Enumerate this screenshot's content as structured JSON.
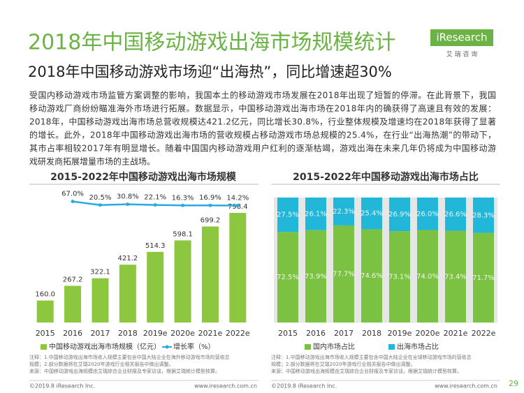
{
  "header": {
    "title": "2018年中国移动游戏出海市场规模统计",
    "logo": "iResearch",
    "logo_sub": "艾 瑞 咨 询",
    "subtitle": "2018年中国移动游戏市场迎“出海热”，同比增速超30%"
  },
  "body": [
    "受国内移动游戏市场监管方案调整的影响，我国本土的移动游戏市场发展在2018年出现了短暂的停滞。在此背景下，我国",
    "移动游戏厂商纷纷瞄准海外市场进行拓展。数据显示，中国移动游戏出海市场在2018年内的确获得了高速且有效的发展：",
    "2018年，中国移动游戏出海市场总营收规模达421.2亿元，同比增长30.8%，行业整体规模及增速均在2018年获得了显著",
    "的增长。此外，2018年中国移动游戏出海市场的营收规模占移动游戏市场总规模的25.4%，在行业“出海热潮”的带动下，",
    "其市占率相较2017年有明显增长。随着中国国内移动游戏用户红利的逐渐枯竭，游戏出海在未来几年仍将成为中国移动游",
    "戏研发商拓展增量市场的主战场。"
  ],
  "chart_data": [
    {
      "type": "bar",
      "title": "2015-2022年中国移动游戏出海市场规模",
      "categories": [
        "2015",
        "2016",
        "2017",
        "2018",
        "2019e",
        "2020e",
        "2021e",
        "2022e"
      ],
      "ylim": [
        0,
        900
      ],
      "y2lim": [
        -1500,
        100
      ],
      "series": [
        {
          "name": "中国移动游戏出海市场规模（亿元）",
          "color": "#8dc63f",
          "values": [
            160.0,
            267.2,
            322.1,
            421.2,
            514.3,
            598.1,
            699.2,
            798.4
          ],
          "value_labels": [
            "160.0",
            "267.2",
            "322.1",
            "421.2",
            "514.3",
            "598.1",
            "699.2",
            "798.4"
          ]
        },
        {
          "name": "增长率（%）",
          "type": "line",
          "axis": "y2",
          "color": "#29abe2",
          "values": [
            null,
            67.0,
            20.5,
            30.8,
            22.1,
            16.3,
            16.9,
            14.2
          ],
          "value_labels": [
            null,
            "67.0%",
            "20.5%",
            "30.8%",
            "22.1%",
            "16.3%",
            "16.9%",
            "14.2%"
          ]
        }
      ],
      "notes": [
        "注释：1.中国移动游戏出海市场收入规模主要包含中国大陆企业在海外移动游戏市场的营收总",
        "规模；2.部分数据将在艾瑞2020年游戏行业相关报告中做出调整。",
        "来源：中国移动游戏出海规模由艾瑞综合企业财报及专家访谈，根据艾瑞统计模型核算。"
      ]
    },
    {
      "type": "stacked_bar",
      "title": "2015-2022年中国移动游戏出海市场占比",
      "categories": [
        "2015",
        "2016",
        "2017",
        "2018",
        "2019e",
        "2020e",
        "2021e",
        "2022e"
      ],
      "ylim": [
        0,
        100
      ],
      "series": [
        {
          "name": "国内市场占比",
          "color": "#7cc242",
          "values": [
            72.5,
            73.9,
            77.7,
            74.6,
            73.1,
            74.0,
            73.4,
            71.7
          ],
          "value_labels": [
            "72.5%",
            "73.9%",
            "77.7%",
            "74.6%",
            "73.1%",
            "74.0%",
            "73.4%",
            "71.7%"
          ]
        },
        {
          "name": "出海市场占比",
          "color": "#22b6d8",
          "values": [
            27.5,
            26.1,
            22.3,
            25.4,
            26.9,
            26.0,
            26.6,
            28.3
          ],
          "value_labels": [
            "27.5%",
            "26.1%",
            "22.3%",
            "25.4%",
            "26.9%",
            "26.0%",
            "26.6%",
            "28.3%"
          ]
        }
      ],
      "notes": [
        "注释：1.中国移动游戏出海市场收入规模主要包含中国大陆企业在全球移动游戏市场的营收总",
        "规模；2.部分数据将在艾瑞2020年游戏行业相关报告中做出调整。",
        "来源：中国移动游戏出海规模由艾瑞综合企业财报及专家访谈，根据艾瑞统计模型核算。"
      ]
    }
  ],
  "footer": {
    "copyright": "©2019.8 iResearch Inc.",
    "url": "www.iresearch.com.cn",
    "page": "29"
  }
}
